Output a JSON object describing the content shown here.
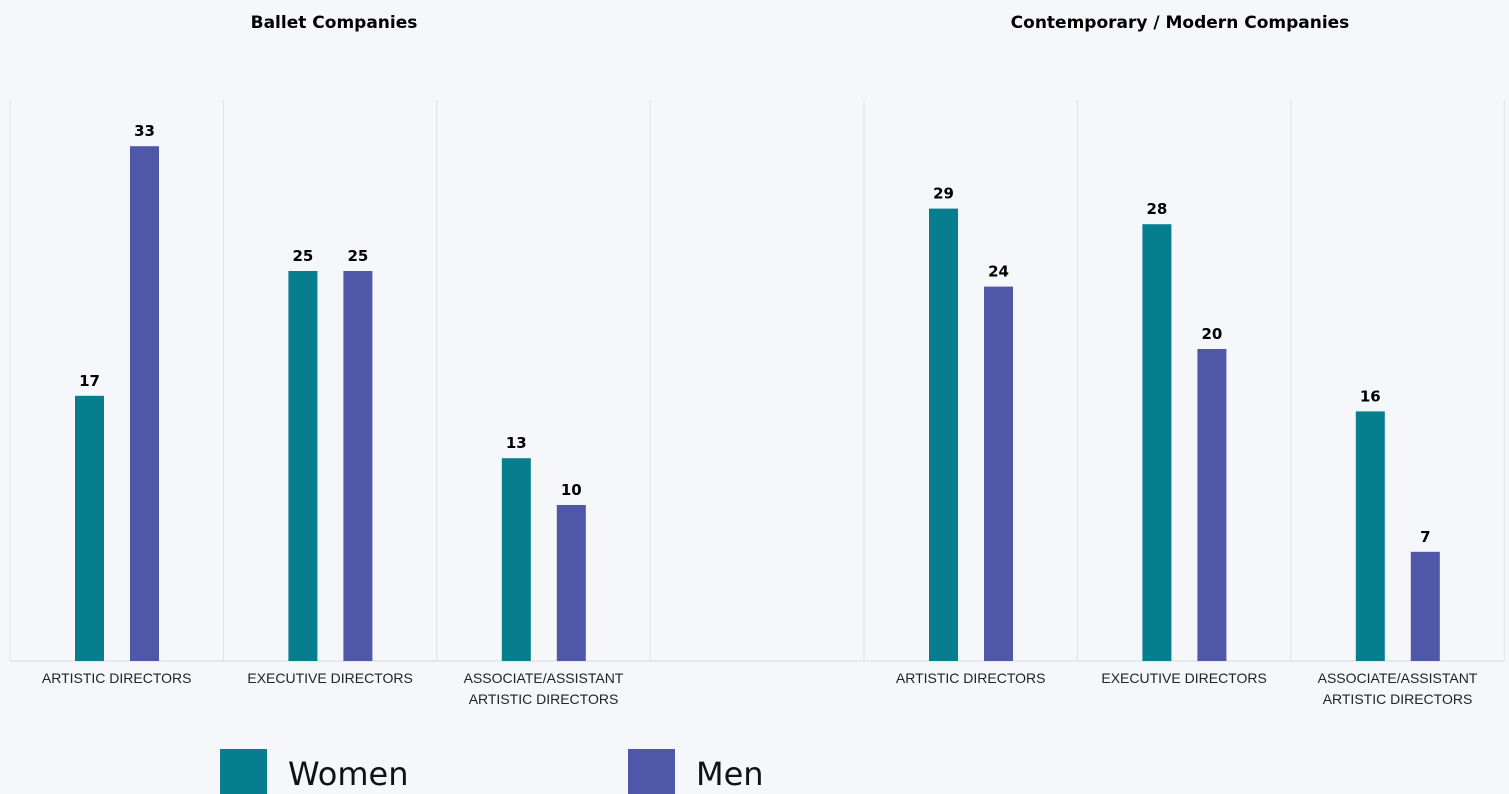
{
  "colors": {
    "women": "#067e8d",
    "men": "#4f57a8",
    "background": "#f6f7fb",
    "gridline": "#e0e0e6",
    "baseline": "#d8d8e0"
  },
  "legend": [
    {
      "key": "women",
      "label": "Women"
    },
    {
      "key": "men",
      "label": "Men"
    }
  ],
  "chart_data": [
    {
      "type": "bar",
      "title": "Ballet Companies",
      "categories": [
        "ARTISTIC DIRECTORS",
        "EXECUTIVE DIRECTORS",
        "ASSOCIATE/ASSISTANT ARTISTIC DIRECTORS"
      ],
      "series": [
        {
          "name": "Women",
          "values": [
            17,
            25,
            13
          ]
        },
        {
          "name": "Men",
          "values": [
            33,
            25,
            10
          ]
        }
      ],
      "ylim": [
        0,
        35
      ],
      "legend_position": "bottom"
    },
    {
      "type": "bar",
      "title": "Contemporary / Modern Companies",
      "categories": [
        "ARTISTIC DIRECTORS",
        "EXECUTIVE DIRECTORS",
        "ASSOCIATE/ASSISTANT ARTISTIC DIRECTORS"
      ],
      "series": [
        {
          "name": "Women",
          "values": [
            29,
            28,
            16
          ]
        },
        {
          "name": "Men",
          "values": [
            24,
            20,
            7
          ]
        }
      ],
      "ylim": [
        0,
        35
      ],
      "legend_position": "bottom"
    }
  ]
}
